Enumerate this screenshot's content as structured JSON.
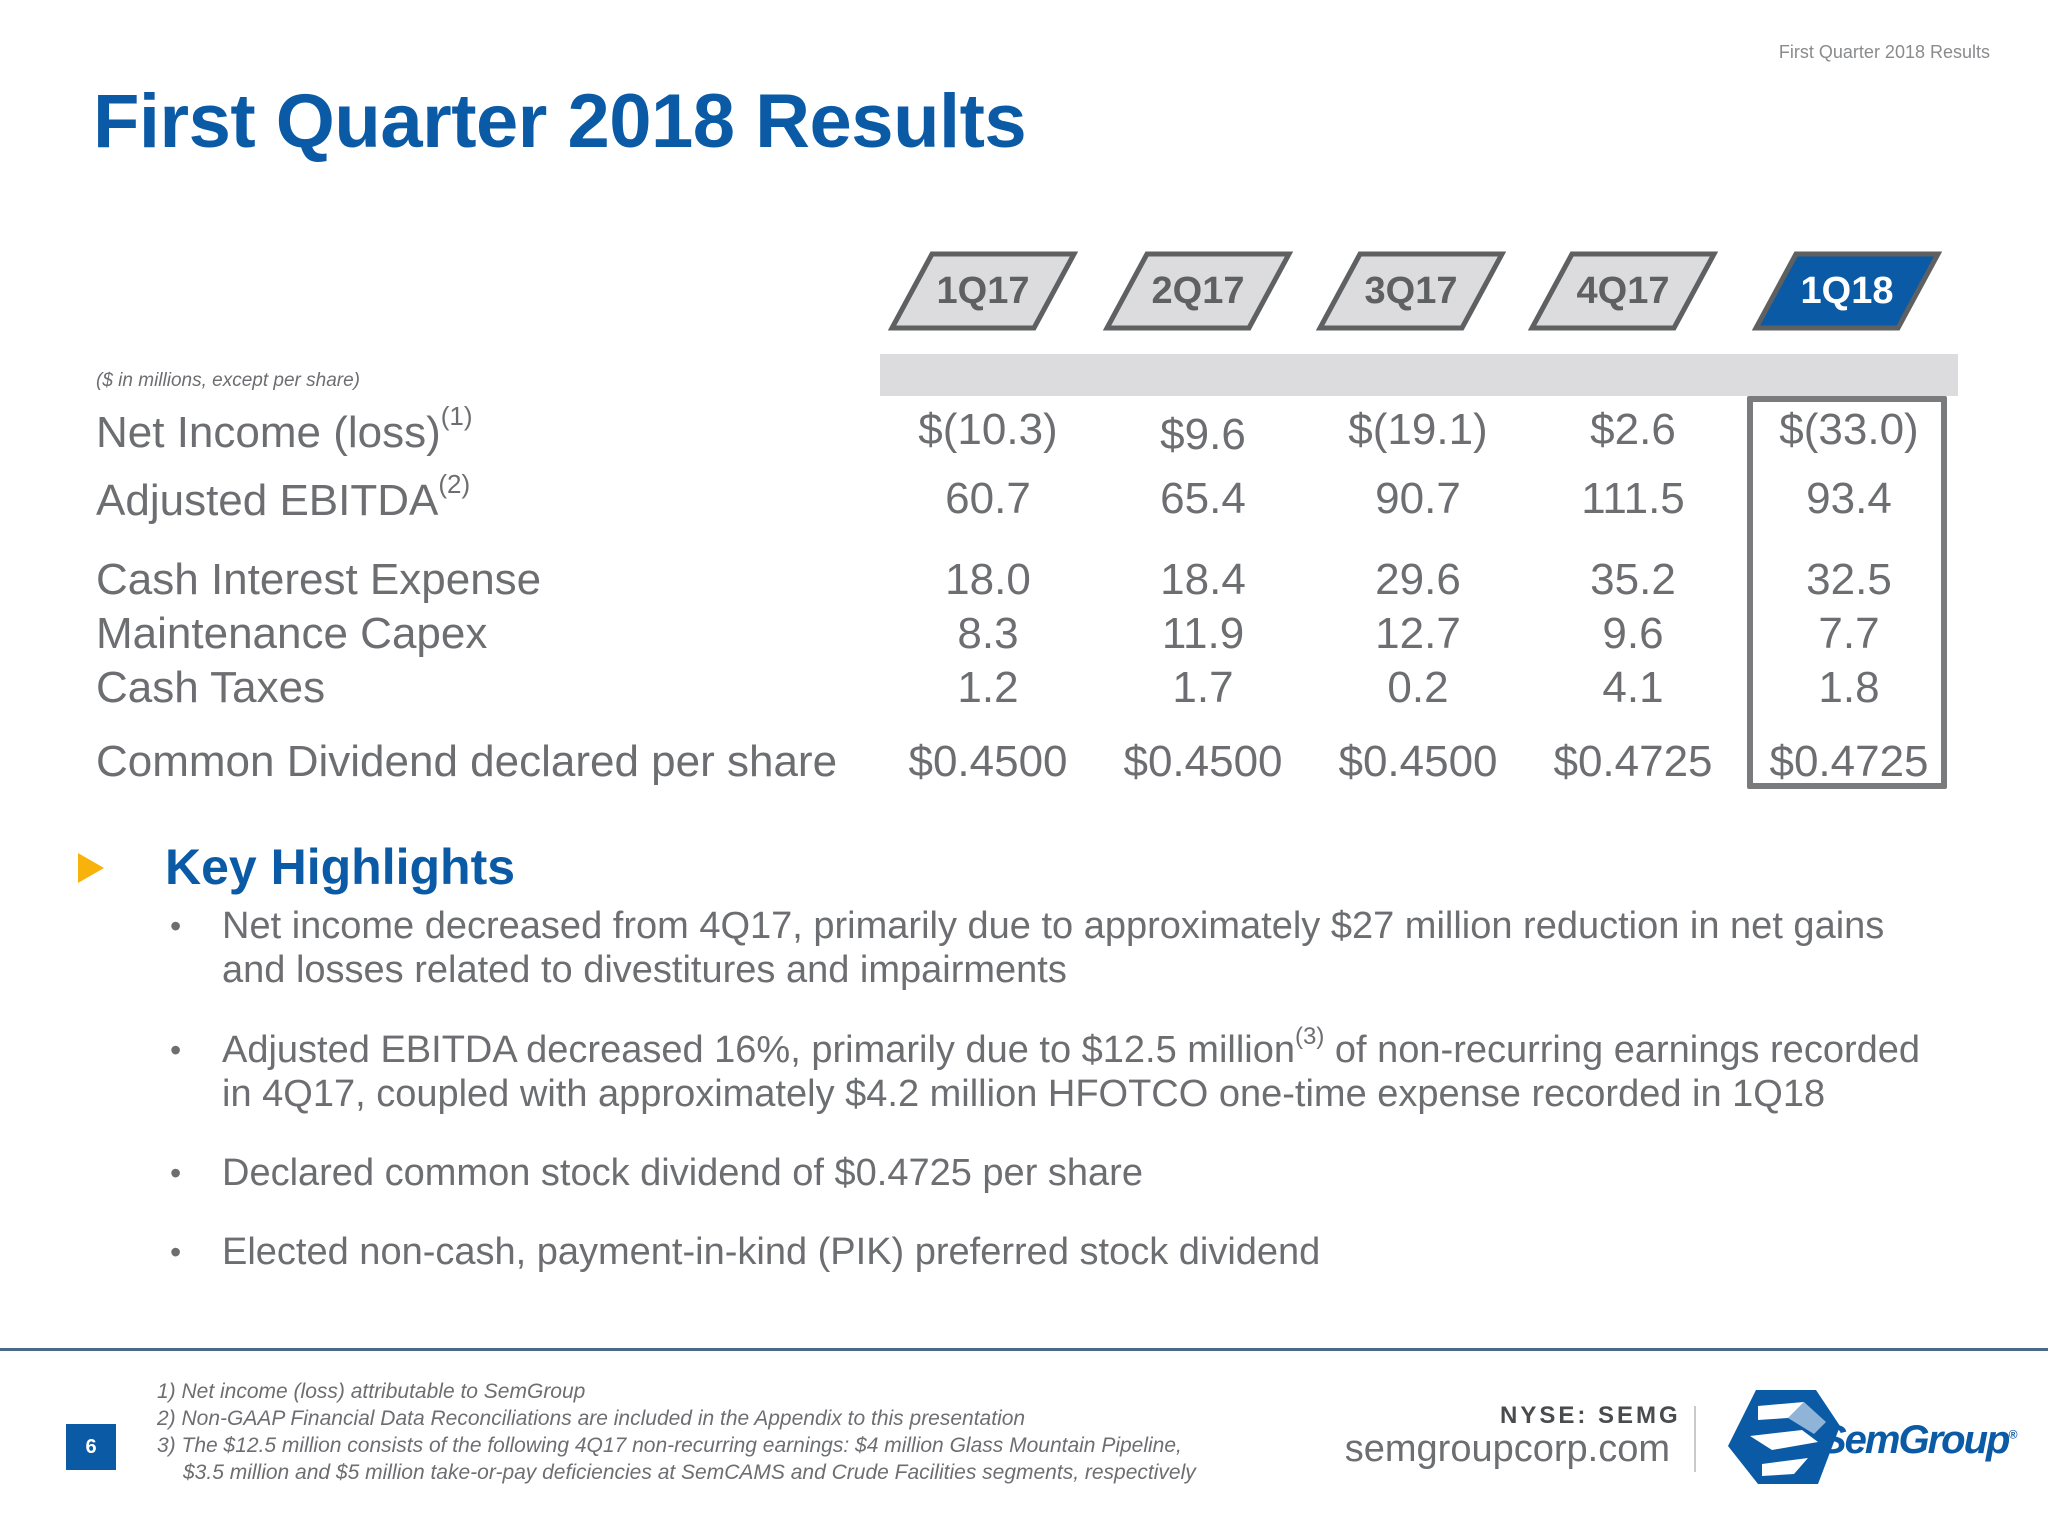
{
  "header": {
    "tagline": "First Quarter 2018 Results",
    "title": "First Quarter 2018 Results"
  },
  "table": {
    "units_note": "($ in millions, except per share)",
    "columns": [
      "1Q17",
      "2Q17",
      "3Q17",
      "4Q17",
      "1Q18"
    ],
    "highlighted_column": "1Q18",
    "rows": [
      {
        "label": "Net Income (loss)",
        "footnote": "(1)",
        "values": [
          "$(10.3)",
          "$9.6",
          "$(19.1)",
          "$2.6",
          "$(33.0)"
        ]
      },
      {
        "label": "Adjusted EBITDA",
        "footnote": "(2)",
        "values": [
          "60.7",
          "65.4",
          "90.7",
          "111.5",
          "93.4"
        ]
      },
      {
        "label": "Cash Interest Expense",
        "values": [
          "18.0",
          "18.4",
          "29.6",
          "35.2",
          "32.5"
        ]
      },
      {
        "label": "Maintenance Capex",
        "values": [
          "8.3",
          "11.9",
          "12.7",
          "9.6",
          "7.7"
        ]
      },
      {
        "label": "Cash Taxes",
        "values": [
          "1.2",
          "1.7",
          "0.2",
          "4.1",
          "1.8"
        ]
      },
      {
        "label": "Common Dividend declared per share",
        "values": [
          "$0.4500",
          "$0.4500",
          "$0.4500",
          "$0.4725",
          "$0.4725"
        ]
      }
    ]
  },
  "highlights": {
    "title": "Key Highlights",
    "bullet_glyph": "•",
    "items": [
      {
        "lines": [
          "Net income decreased from 4Q17, primarily due to approximately $27 million reduction in net gains",
          "and losses related to divestitures and impairments"
        ]
      },
      {
        "line1_before": "Adjusted EBITDA decreased 16%, primarily due to $12.5 million",
        "line1_sup": "(3)",
        "line1_after": " of non-recurring earnings recorded",
        "line2": "in 4Q17, coupled with approximately $4.2 million HFOTCO one-time expense recorded in 1Q18"
      },
      {
        "lines": [
          "Declared common stock dividend of $0.4725 per share"
        ]
      },
      {
        "lines": [
          "Elected non-cash, payment-in-kind (PIK) preferred stock dividend"
        ]
      }
    ]
  },
  "footer": {
    "page_number": "6",
    "footnotes": [
      "1) Net income (loss) attributable to SemGroup",
      "2) Non-GAAP Financial Data Reconciliations are included in the Appendix to this presentation",
      "3) The $12.5 million consists of the following 4Q17 non-recurring earnings: $4 million Glass Mountain Pipeline,",
      "$3.5 million and $5 million take-or-pay deficiencies at SemCAMS and Crude Facilities segments, respectively"
    ],
    "ticker": "NYSE: SEMG",
    "website": "semgroupcorp.com",
    "logo_text": "SemGroup",
    "logo_mark": "®"
  },
  "colors": {
    "brand_blue": "#0a5aa6",
    "accent_yellow": "#f7b30b",
    "text_gray": "#6d6e71",
    "header_fill": "#dcdcde"
  }
}
